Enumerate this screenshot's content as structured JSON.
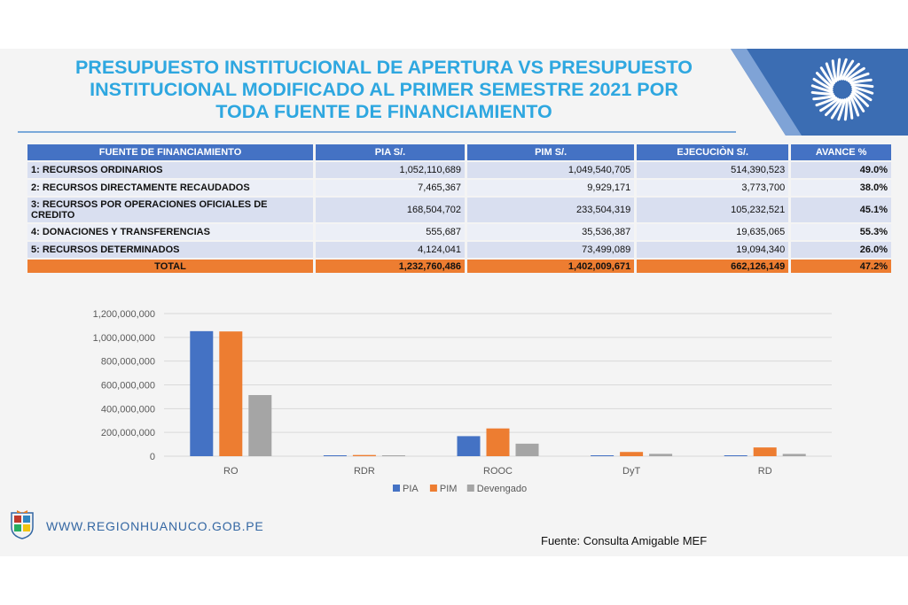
{
  "header": {
    "title_lines": [
      "PRESUPUESTO INSTITUCIONAL DE APERTURA VS PRESUPUESTO",
      "INSTITUCIONAL MODIFICADO AL PRIMER SEMESTRE 2021 POR",
      "TODA FUENTE DE FINANCIAMIENTO"
    ]
  },
  "colors": {
    "title": "#2ea7e0",
    "table_header": "#4472c4",
    "total_row": "#ed7d31",
    "pia": "#4472c4",
    "pim": "#ed7d31",
    "devengado": "#a5a5a5"
  },
  "table": {
    "headers": [
      "FUENTE DE FINANCIAMIENTO",
      "PIA S/.",
      "PIM S/.",
      "EJECUCIÒN S/.",
      "AVANCE %"
    ],
    "rows": [
      [
        "1: RECURSOS ORDINARIOS",
        "1,052,110,689",
        "1,049,540,705",
        "514,390,523",
        "49.0%"
      ],
      [
        "2: RECURSOS DIRECTAMENTE RECAUDADOS",
        "7,465,367",
        "9,929,171",
        "3,773,700",
        "38.0%"
      ],
      [
        "3: RECURSOS POR OPERACIONES OFICIALES DE CREDITO",
        "168,504,702",
        "233,504,319",
        "105,232,521",
        "45.1%"
      ],
      [
        "4: DONACIONES Y TRANSFERENCIAS",
        "555,687",
        "35,536,387",
        "19,635,065",
        "55.3%"
      ],
      [
        "5: RECURSOS DETERMINADOS",
        "4,124,041",
        "73,499,089",
        "19,094,340",
        "26.0%"
      ]
    ],
    "total": [
      "TOTAL",
      "1,232,760,486",
      "1,402,009,671",
      "662,126,149",
      "47.2%"
    ]
  },
  "chart_data": {
    "type": "bar",
    "categories": [
      "RO",
      "RDR",
      "ROOC",
      "DyT",
      "RD"
    ],
    "series": [
      {
        "name": "PIA",
        "values": [
          1052110689,
          7465367,
          168504702,
          555687,
          4124041
        ]
      },
      {
        "name": "PIM",
        "values": [
          1049540705,
          9929171,
          233504319,
          35536387,
          73499089
        ]
      },
      {
        "name": "Devengado",
        "values": [
          514390523,
          3773700,
          105232521,
          19635065,
          19094340
        ]
      }
    ],
    "ylim": [
      0,
      1200000000
    ],
    "yticks": [
      0,
      200000000,
      400000000,
      600000000,
      800000000,
      1000000000,
      1200000000
    ],
    "ytick_labels": [
      "0",
      "200,000,000",
      "400,000,000",
      "600,000,000",
      "800,000,000",
      "1,000,000,000",
      "1,200,000,000"
    ],
    "grid": true,
    "legend_position": "bottom"
  },
  "footer": {
    "url": "WWW.REGIONHUANUCO.GOB.PE",
    "source": "Fuente: Consulta Amigable MEF"
  }
}
